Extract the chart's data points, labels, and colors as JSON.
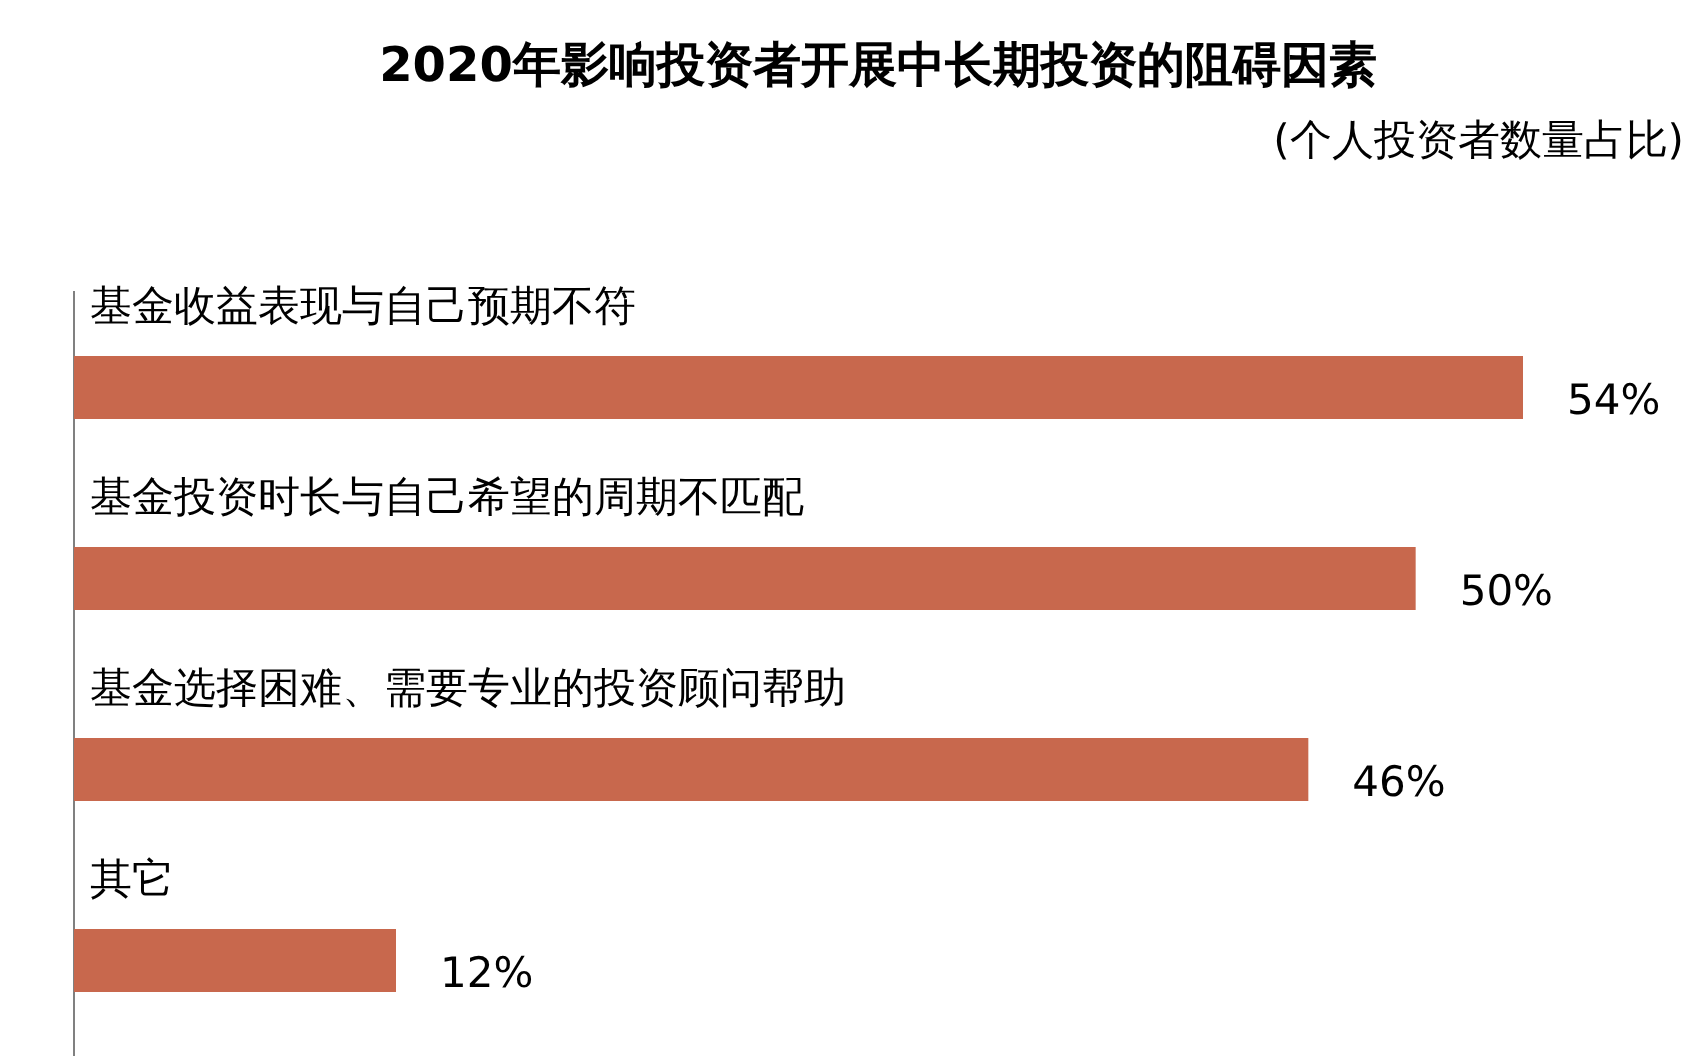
{
  "chart_data": {
    "type": "bar",
    "orientation": "horizontal",
    "title": "2020年影响投资者开展中长期投资的阻碍因素",
    "subtitle": "(个人投资者数量占比)",
    "categories": [
      "基金收益表现与自己预期不符",
      "基金投资时长与自己希望的周期不匹配",
      "基金选择困难、需要专业的投资顾问帮助",
      "其它"
    ],
    "values": [
      54,
      50,
      46,
      12
    ],
    "value_labels": [
      "54%",
      "50%",
      "46%",
      "12%"
    ],
    "color": "#c8684d",
    "grid": false,
    "legend": false
  }
}
